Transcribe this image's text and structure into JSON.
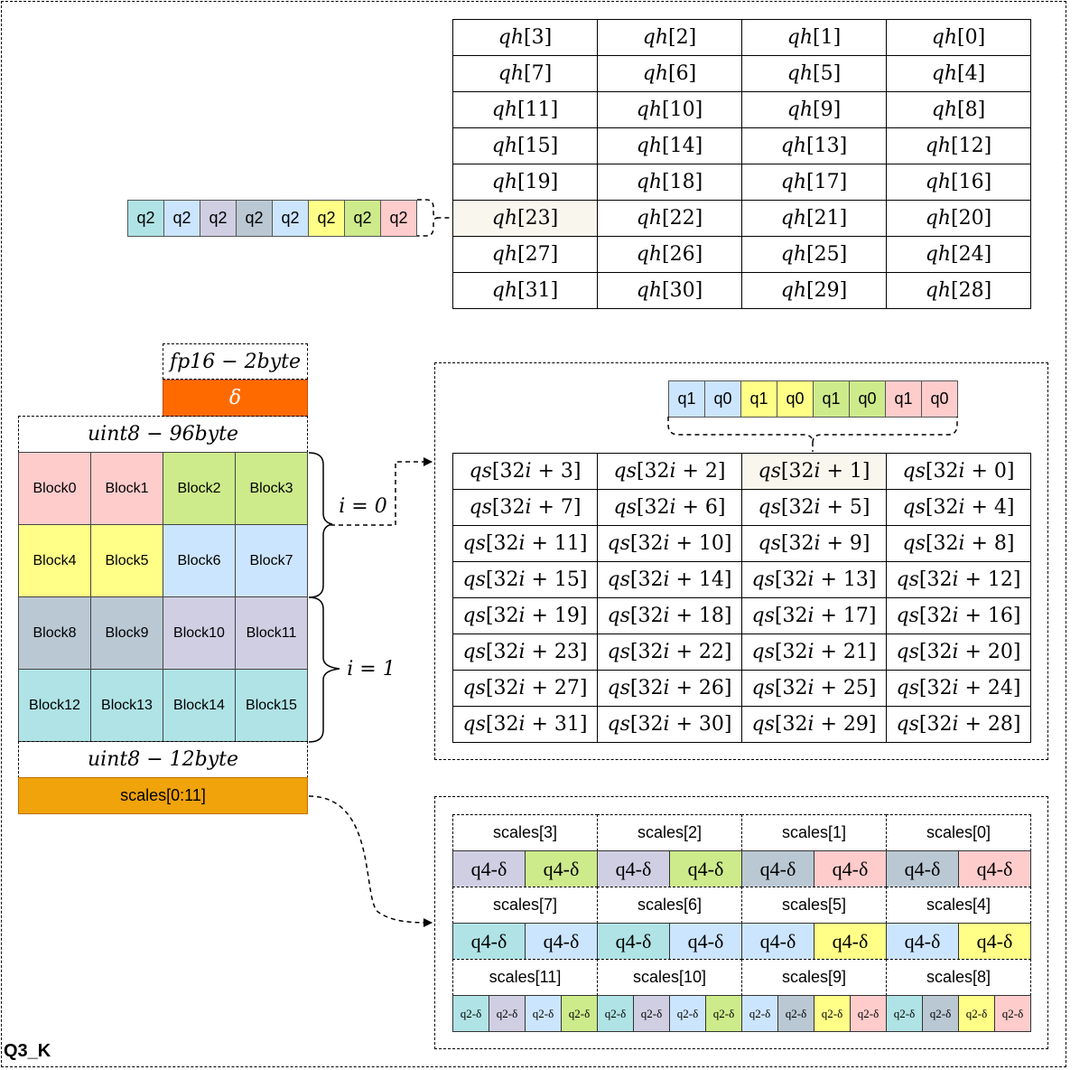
{
  "title": "Q3_K",
  "colors": {
    "teal": "#b0e3e6",
    "blue": "#cce5ff",
    "purple": "#d0cee2",
    "gray": "#bac8d3",
    "yellow": "#ffff88",
    "green": "#cdeb8b",
    "pink": "#ffcccc",
    "orange_red": "#ff6a00",
    "orange": "#f0a30a",
    "beige": "#f9f7ed"
  },
  "q2_row": {
    "cells": [
      {
        "label": "q2",
        "color": "teal"
      },
      {
        "label": "q2",
        "color": "blue"
      },
      {
        "label": "q2",
        "color": "purple"
      },
      {
        "label": "q2",
        "color": "gray"
      },
      {
        "label": "q2",
        "color": "blue"
      },
      {
        "label": "q2",
        "color": "yellow"
      },
      {
        "label": "q2",
        "color": "green"
      },
      {
        "label": "q2",
        "color": "pink"
      }
    ]
  },
  "qh_table": {
    "rows": [
      [
        "3",
        "2",
        "1",
        "0"
      ],
      [
        "7",
        "6",
        "5",
        "4"
      ],
      [
        "11",
        "10",
        "9",
        "8"
      ],
      [
        "15",
        "14",
        "13",
        "12"
      ],
      [
        "19",
        "18",
        "17",
        "16"
      ],
      [
        "23",
        "22",
        "21",
        "20"
      ],
      [
        "27",
        "26",
        "25",
        "24"
      ],
      [
        "31",
        "30",
        "29",
        "28"
      ]
    ],
    "prefix": "qh"
  },
  "left": {
    "fp16_label": "fp16 − 2byte",
    "delta": "δ",
    "uint8_96_label": "uint8 − 96byte",
    "blocks": [
      [
        "Block0",
        "Block1",
        "Block2",
        "Block3"
      ],
      [
        "Block4",
        "Block5",
        "Block6",
        "Block7"
      ],
      [
        "Block8",
        "Block9",
        "Block10",
        "Block11"
      ],
      [
        "Block12",
        "Block13",
        "Block14",
        "Block15"
      ]
    ],
    "block_colors": [
      [
        "pink",
        "pink",
        "green",
        "green"
      ],
      [
        "yellow",
        "yellow",
        "blue",
        "blue"
      ],
      [
        "gray",
        "gray",
        "purple",
        "purple"
      ],
      [
        "teal",
        "teal",
        "teal",
        "teal"
      ]
    ],
    "uint8_12_label": "uint8 − 12byte",
    "scales_label": "scales[0:11]",
    "brace_i0": "i = 0",
    "brace_i1": "i = 1"
  },
  "q_row": {
    "cells": [
      {
        "label": "q1",
        "color": "blue"
      },
      {
        "label": "q0",
        "color": "blue"
      },
      {
        "label": "q1",
        "color": "yellow"
      },
      {
        "label": "q0",
        "color": "yellow"
      },
      {
        "label": "q1",
        "color": "green"
      },
      {
        "label": "q0",
        "color": "green"
      },
      {
        "label": "q1",
        "color": "pink"
      },
      {
        "label": "q0",
        "color": "pink"
      }
    ]
  },
  "qs_table": {
    "prefix": "qs",
    "rows": [
      [
        "3",
        "2",
        "1",
        "0"
      ],
      [
        "7",
        "6",
        "5",
        "4"
      ],
      [
        "11",
        "10",
        "9",
        "8"
      ],
      [
        "15",
        "14",
        "13",
        "12"
      ],
      [
        "19",
        "18",
        "17",
        "16"
      ],
      [
        "23",
        "22",
        "21",
        "20"
      ],
      [
        "27",
        "26",
        "25",
        "24"
      ],
      [
        "31",
        "30",
        "29",
        "28"
      ]
    ]
  },
  "scales_table": {
    "groups": [
      {
        "headers": [
          "scales[3]",
          "scales[2]",
          "scales[1]",
          "scales[0]"
        ],
        "cells": [
          {
            "label": "q4-δ",
            "color": "purple"
          },
          {
            "label": "q4-δ",
            "color": "green"
          },
          {
            "label": "q4-δ",
            "color": "purple"
          },
          {
            "label": "q4-δ",
            "color": "green"
          },
          {
            "label": "q4-δ",
            "color": "gray"
          },
          {
            "label": "q4-δ",
            "color": "pink"
          },
          {
            "label": "q4-δ",
            "color": "gray"
          },
          {
            "label": "q4-δ",
            "color": "pink"
          }
        ]
      },
      {
        "headers": [
          "scales[7]",
          "scales[6]",
          "scales[5]",
          "scales[4]"
        ],
        "cells": [
          {
            "label": "q4-δ",
            "color": "teal"
          },
          {
            "label": "q4-δ",
            "color": "blue"
          },
          {
            "label": "q4-δ",
            "color": "teal"
          },
          {
            "label": "q4-δ",
            "color": "blue"
          },
          {
            "label": "q4-δ",
            "color": "blue"
          },
          {
            "label": "q4-δ",
            "color": "yellow"
          },
          {
            "label": "q4-δ",
            "color": "blue"
          },
          {
            "label": "q4-δ",
            "color": "yellow"
          }
        ]
      },
      {
        "headers": [
          "scales[11]",
          "scales[10]",
          "scales[9]",
          "scales[8]"
        ],
        "small": true,
        "cells": [
          {
            "label": "q2-δ",
            "color": "teal"
          },
          {
            "label": "q2-δ",
            "color": "purple"
          },
          {
            "label": "q2-δ",
            "color": "blue"
          },
          {
            "label": "q2-δ",
            "color": "green"
          },
          {
            "label": "q2-δ",
            "color": "teal"
          },
          {
            "label": "q2-δ",
            "color": "purple"
          },
          {
            "label": "q2-δ",
            "color": "blue"
          },
          {
            "label": "q2-δ",
            "color": "green"
          },
          {
            "label": "q2-δ",
            "color": "blue"
          },
          {
            "label": "q2-δ",
            "color": "gray"
          },
          {
            "label": "q2-δ",
            "color": "yellow"
          },
          {
            "label": "q2-δ",
            "color": "pink"
          },
          {
            "label": "q2-δ",
            "color": "teal"
          },
          {
            "label": "q2-δ",
            "color": "gray"
          },
          {
            "label": "q2-δ",
            "color": "yellow"
          },
          {
            "label": "q2-δ",
            "color": "pink"
          }
        ]
      }
    ]
  }
}
